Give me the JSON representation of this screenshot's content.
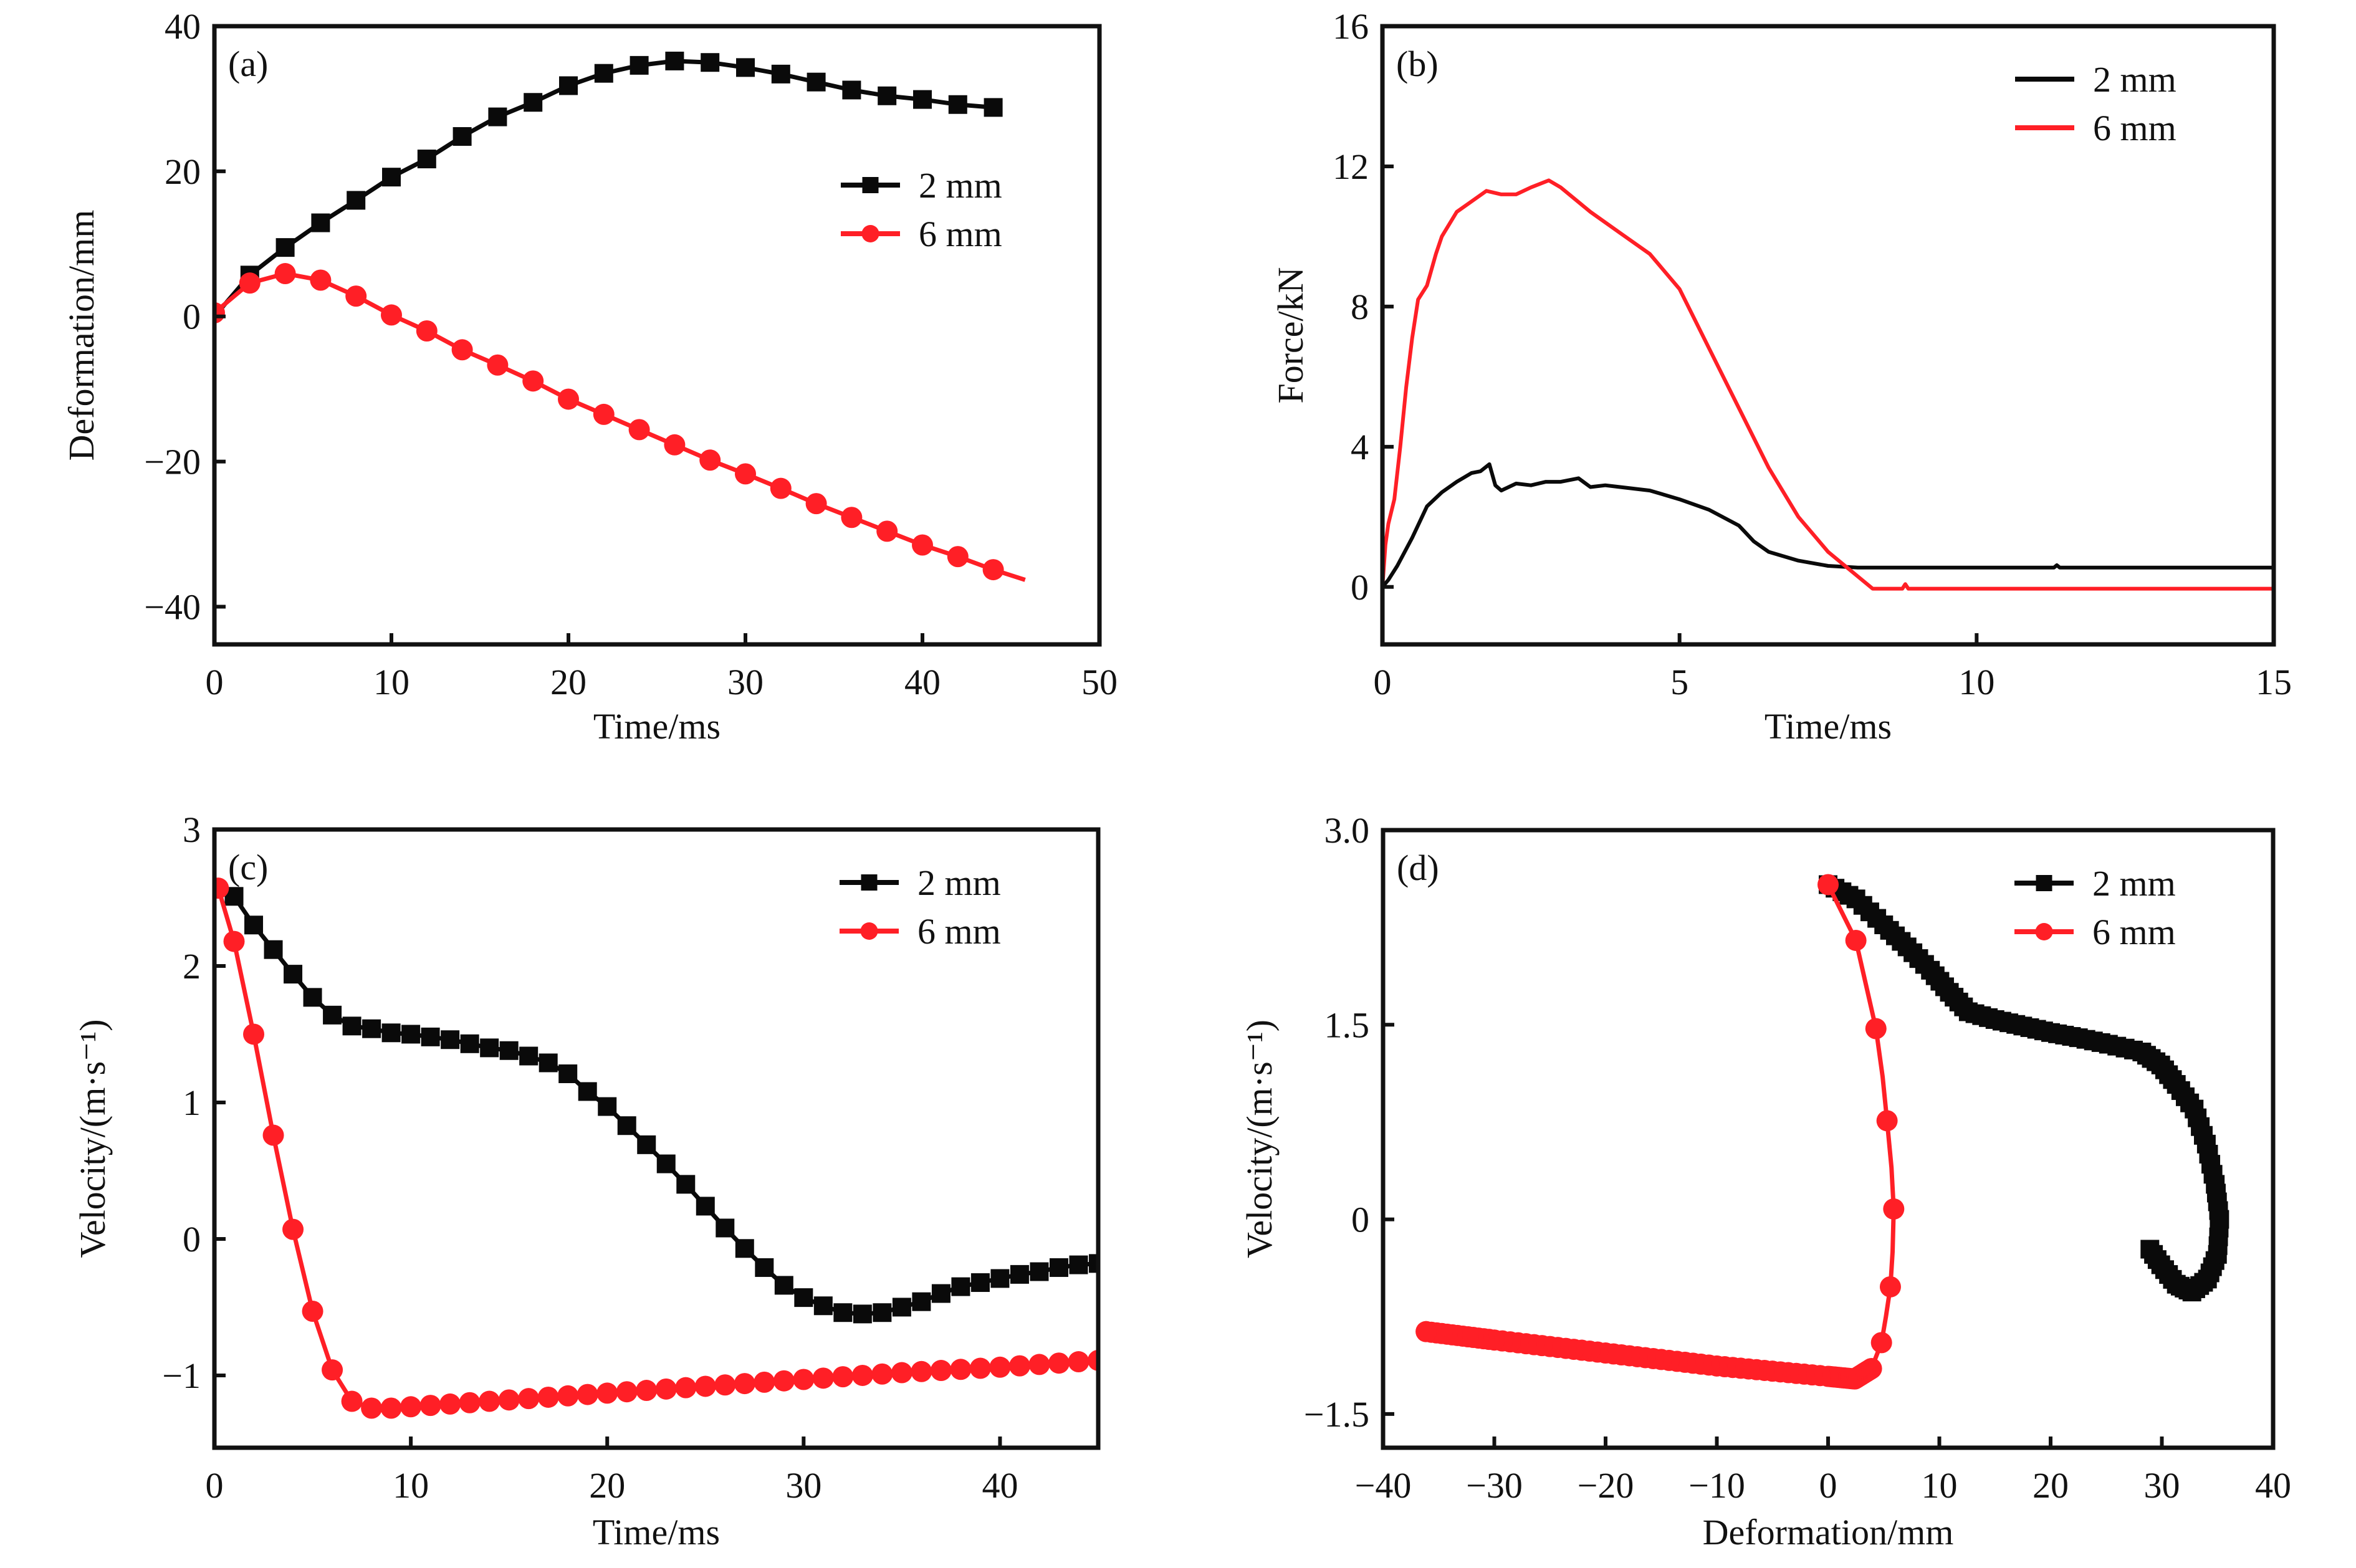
{
  "figure": {
    "colors": {
      "series_2mm": "#0a0a0a",
      "series_6mm": "#ff1f26",
      "axis": "#111111",
      "background": "#ffffff"
    },
    "legend_labels": [
      "2 mm",
      "6 mm"
    ]
  },
  "chart_data": [
    {
      "id": "a",
      "panel_tag": "(a)",
      "type": "line",
      "markers": true,
      "title": "",
      "xlabel": "Time/ms",
      "ylabel": "Deformation/mm",
      "xlim": [
        0,
        50
      ],
      "ylim": [
        -45.2,
        40
      ],
      "xticks": [
        0,
        10,
        20,
        30,
        40,
        50
      ],
      "yticks": [
        -40,
        -20,
        0,
        20,
        40
      ],
      "xtick_labels": [
        "0",
        "10",
        "20",
        "30",
        "40",
        "50"
      ],
      "ytick_labels": [
        "−40",
        "−20",
        "0",
        "20",
        "40"
      ],
      "grid": false,
      "legend_position": "right-upper-middle",
      "series": [
        {
          "name": "2 mm",
          "color": "#0a0a0a",
          "marker": "square",
          "x": [
            0,
            2,
            4,
            6,
            8,
            10,
            12,
            14,
            16,
            18,
            20,
            22,
            24,
            26,
            28,
            30,
            32,
            34,
            36,
            38,
            40,
            42,
            44
          ],
          "y": [
            0,
            5.7,
            9.5,
            12.9,
            16.0,
            19.2,
            21.7,
            24.8,
            27.5,
            29.5,
            31.8,
            33.5,
            34.6,
            35.2,
            35.0,
            34.3,
            33.4,
            32.3,
            31.2,
            30.4,
            29.9,
            29.2,
            28.8
          ],
          "marker_x": [
            2,
            4,
            6,
            8,
            10,
            12,
            14,
            16,
            18,
            20,
            22,
            24,
            26,
            28,
            30,
            32,
            34,
            36,
            38,
            40,
            42,
            44
          ]
        },
        {
          "name": "6 mm",
          "color": "#ff1f26",
          "marker": "circle",
          "x": [
            0,
            2,
            4,
            6,
            8,
            10,
            12,
            14,
            16,
            18,
            20,
            22,
            24,
            26,
            28,
            30,
            32,
            34,
            36,
            38,
            40,
            42,
            44,
            45.8
          ],
          "y": [
            0.5,
            4.6,
            5.9,
            5.0,
            2.8,
            0.2,
            -2.0,
            -4.6,
            -6.7,
            -8.9,
            -11.4,
            -13.5,
            -15.6,
            -17.7,
            -19.8,
            -21.7,
            -23.7,
            -25.8,
            -27.7,
            -29.6,
            -31.5,
            -33.1,
            -34.9,
            -36.3
          ],
          "marker_x": [
            0,
            2,
            4,
            6,
            8,
            10,
            12,
            14,
            16,
            18,
            20,
            22,
            24,
            26,
            28,
            30,
            32,
            34,
            36,
            38,
            40,
            42,
            44
          ]
        }
      ]
    },
    {
      "id": "b",
      "panel_tag": "(b)",
      "type": "line",
      "markers": false,
      "title": "",
      "xlabel": "Time/ms",
      "ylabel": "Force/kN",
      "xlim": [
        0,
        15
      ],
      "ylim": [
        -1.64,
        16
      ],
      "xticks": [
        0,
        5,
        10,
        15
      ],
      "yticks": [
        0,
        4,
        8,
        12,
        16
      ],
      "xtick_labels": [
        "0",
        "5",
        "10",
        "15"
      ],
      "ytick_labels": [
        "0",
        "4",
        "8",
        "12",
        "16"
      ],
      "grid": false,
      "legend_position": "top-right",
      "series": [
        {
          "name": "2 mm",
          "color": "#0a0a0a",
          "marker": "none",
          "x": [
            0,
            0.1,
            0.25,
            0.5,
            0.75,
            1.0,
            1.25,
            1.5,
            1.65,
            1.8,
            1.9,
            2.0,
            2.25,
            2.5,
            2.75,
            3.0,
            3.3,
            3.5,
            3.75,
            4.0,
            4.5,
            5.0,
            5.5,
            6.0,
            6.25,
            6.5,
            7.0,
            7.5,
            8.0,
            11.3,
            11.35,
            11.4,
            15
          ],
          "y": [
            0,
            0.2,
            0.6,
            1.4,
            2.3,
            2.7,
            3.0,
            3.25,
            3.3,
            3.5,
            2.9,
            2.75,
            2.95,
            2.9,
            3.0,
            3.0,
            3.1,
            2.85,
            2.9,
            2.85,
            2.75,
            2.5,
            2.2,
            1.75,
            1.3,
            1.0,
            0.75,
            0.6,
            0.55,
            0.55,
            0.62,
            0.55,
            0.55
          ]
        },
        {
          "name": "6 mm",
          "color": "#ff1f26",
          "marker": "none",
          "x": [
            0,
            0.05,
            0.1,
            0.2,
            0.3,
            0.4,
            0.5,
            0.6,
            0.75,
            0.9,
            1.0,
            1.25,
            1.5,
            1.75,
            2.0,
            2.25,
            2.5,
            2.8,
            3.0,
            3.5,
            4.0,
            4.5,
            5.0,
            5.5,
            6.0,
            6.5,
            7.0,
            7.5,
            8.0,
            8.25,
            8.75,
            8.8,
            8.85,
            15
          ],
          "y": [
            0,
            1.2,
            1.8,
            2.5,
            4.0,
            5.7,
            7.1,
            8.2,
            8.6,
            9.5,
            10.0,
            10.7,
            11.0,
            11.3,
            11.2,
            11.2,
            11.4,
            11.6,
            11.4,
            10.7,
            10.1,
            9.5,
            8.5,
            6.8,
            5.1,
            3.4,
            2.0,
            1.0,
            0.3,
            -0.05,
            -0.05,
            0.08,
            -0.05,
            -0.05
          ]
        }
      ]
    },
    {
      "id": "c",
      "panel_tag": "(c)",
      "type": "line",
      "markers": true,
      "title": "",
      "xlabel": "Time/ms",
      "ylabel": "Velocity/(m·s⁻¹)",
      "xlim": [
        0,
        45
      ],
      "ylim": [
        -1.53,
        3
      ],
      "xticks": [
        0,
        10,
        20,
        30,
        40
      ],
      "yticks": [
        -1,
        0,
        1,
        2,
        3
      ],
      "xtick_labels": [
        "0",
        "10",
        "20",
        "30",
        "40"
      ],
      "ytick_labels": [
        "−1",
        "0",
        "1",
        "2",
        "3"
      ],
      "grid": false,
      "legend_position": "top-right",
      "series": [
        {
          "name": "2 mm",
          "color": "#0a0a0a",
          "marker": "square",
          "x": [
            0.2,
            1,
            2,
            3,
            4,
            5,
            6,
            7,
            8,
            9,
            10,
            11,
            12,
            13,
            14,
            15,
            16,
            17,
            18,
            19,
            20,
            21,
            22,
            23,
            24,
            25,
            26,
            27,
            28,
            29,
            30,
            31,
            32,
            33,
            34,
            35,
            36,
            37,
            38,
            39,
            40,
            41,
            42,
            43,
            44,
            45
          ],
          "y": [
            2.58,
            2.51,
            2.3,
            2.12,
            1.94,
            1.77,
            1.64,
            1.56,
            1.54,
            1.51,
            1.5,
            1.48,
            1.46,
            1.43,
            1.4,
            1.38,
            1.34,
            1.29,
            1.21,
            1.08,
            0.97,
            0.83,
            0.69,
            0.55,
            0.4,
            0.24,
            0.08,
            -0.07,
            -0.21,
            -0.34,
            -0.43,
            -0.49,
            -0.54,
            -0.55,
            -0.54,
            -0.5,
            -0.46,
            -0.4,
            -0.35,
            -0.32,
            -0.29,
            -0.26,
            -0.24,
            -0.21,
            -0.19,
            -0.18
          ],
          "marker_x": [
            1,
            2,
            3,
            4,
            5,
            6,
            7,
            8,
            9,
            10,
            11,
            12,
            13,
            14,
            15,
            16,
            17,
            18,
            19,
            20,
            21,
            22,
            23,
            24,
            25,
            26,
            27,
            28,
            29,
            30,
            31,
            32,
            33,
            34,
            35,
            36,
            37,
            38,
            39,
            40,
            41,
            42,
            43,
            44,
            45
          ]
        },
        {
          "name": "6 mm",
          "color": "#ff1f26",
          "marker": "circle",
          "x": [
            0.2,
            1,
            2,
            3,
            4,
            5,
            6,
            7,
            8,
            9,
            10,
            15,
            20,
            25,
            30,
            35,
            40,
            45
          ],
          "y": [
            2.57,
            2.18,
            1.5,
            0.76,
            0.07,
            -0.53,
            -0.96,
            -1.19,
            -1.24,
            -1.24,
            -1.23,
            -1.18,
            -1.13,
            -1.08,
            -1.03,
            -0.98,
            -0.94,
            -0.89
          ],
          "marker_x": [
            0.2,
            1,
            2,
            3,
            4,
            5,
            6,
            7,
            8,
            9,
            10,
            11,
            12,
            13,
            14,
            15,
            16,
            17,
            18,
            19,
            20,
            21,
            22,
            23,
            24,
            25,
            26,
            27,
            28,
            29,
            30,
            31,
            32,
            33,
            34,
            35,
            36,
            37,
            38,
            39,
            40,
            41,
            42,
            43,
            44,
            45
          ]
        }
      ]
    },
    {
      "id": "d",
      "panel_tag": "(d)",
      "type": "line",
      "markers": true,
      "title": "",
      "xlabel": "Deformation/mm",
      "ylabel": "Velocity/(m·s⁻¹)",
      "xlim": [
        -40,
        40
      ],
      "ylim": [
        -1.76,
        3.0
      ],
      "xticks": [
        -40,
        -30,
        -20,
        -10,
        0,
        10,
        20,
        30,
        40
      ],
      "yticks": [
        -1.5,
        0,
        1.5,
        3.0
      ],
      "xtick_labels": [
        "−40",
        "−30",
        "−20",
        "−10",
        "0",
        "10",
        "20",
        "30",
        "40"
      ],
      "ytick_labels": [
        "−1.5",
        "0",
        "1.5",
        "3.0"
      ],
      "grid": false,
      "legend_position": "top-right",
      "series": [
        {
          "name": "2 mm",
          "color": "#0a0a0a",
          "marker": "square",
          "x": [
            0,
            2.5,
            5.0,
            7.1,
            9.2,
            10.9,
            12.6,
            15,
            17.5,
            20,
            22.5,
            25.2,
            28.2,
            29.9,
            31.3,
            32.9,
            34.0,
            34.8,
            35.2,
            35.0,
            34.1,
            32.7,
            31.3,
            29.9,
            28.6
          ],
          "y": [
            2.58,
            2.47,
            2.27,
            2.1,
            1.92,
            1.75,
            1.6,
            1.54,
            1.49,
            1.44,
            1.4,
            1.35,
            1.29,
            1.19,
            1.04,
            0.85,
            0.58,
            0.27,
            0.0,
            -0.27,
            -0.46,
            -0.56,
            -0.5,
            -0.35,
            -0.19
          ],
          "dense": true
        },
        {
          "name": "6 mm",
          "color": "#ff1f26",
          "marker": "circle",
          "x": [
            0,
            2.5,
            3.4,
            4.3,
            4.9,
            5.3,
            5.7,
            5.9,
            5.8,
            5.6,
            5.2,
            4.8,
            3.9,
            2.4,
            0,
            -10,
            -20,
            -30,
            -36.6
          ],
          "y": [
            2.58,
            2.15,
            1.81,
            1.47,
            1.1,
            0.76,
            0.4,
            0.08,
            -0.25,
            -0.52,
            -0.75,
            -0.95,
            -1.15,
            -1.23,
            -1.21,
            -1.13,
            -1.03,
            -0.93,
            -0.86
          ],
          "marker_points": [
            [
              0,
              2.58
            ],
            [
              2.5,
              2.15
            ],
            [
              4.3,
              1.47
            ],
            [
              5.3,
              0.76
            ],
            [
              5.9,
              0.08
            ],
            [
              5.6,
              -0.52
            ],
            [
              4.8,
              -0.95
            ]
          ],
          "dense_tail_from_index": 12
        }
      ]
    }
  ]
}
